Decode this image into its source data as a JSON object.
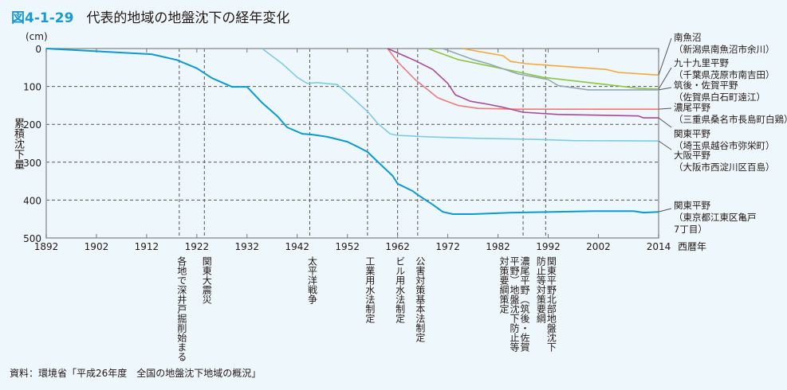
{
  "title": {
    "figure_number": "図4-1-29",
    "text": "代表的地域の地盤沈下の経年変化"
  },
  "source": "資料：環境省「平成26年度　全国の地盤沈下地域の概況」",
  "chart_data": {
    "type": "line",
    "title": "代表的地域の地盤沈下の経年変化",
    "xlabel": "西暦年",
    "ylabel": "累積沈下量",
    "yunit": "(cm)",
    "xlim": [
      1892,
      2014
    ],
    "ylim": [
      0,
      500
    ],
    "y_inverted": true,
    "xticks": [
      1892,
      1902,
      1912,
      1922,
      1932,
      1942,
      1952,
      1962,
      1972,
      1982,
      1992,
      2002,
      2014
    ],
    "yticks": [
      0,
      100,
      200,
      300,
      400,
      500
    ],
    "grid": "dashed horizontal at 100-400",
    "series": [
      {
        "name": "南魚沼",
        "location": "（新潟県南魚沼市余川）",
        "color": "#f7a833",
        "x": [
          1975,
          1977,
          1983,
          1984.5,
          1987.6,
          1994,
          2003.5,
          2006,
          2014
        ],
        "y": [
          0,
          5,
          19,
          34,
          40,
          46,
          55,
          63,
          70
        ]
      },
      {
        "name": "九十九里平野",
        "location": "（千葉県茂原市南吉田）",
        "color": "#8cc63f",
        "x": [
          1968,
          1974,
          1981,
          1991,
          1999,
          2010,
          2014
        ],
        "y": [
          0,
          29,
          48,
          76,
          88,
          105,
          107
        ]
      },
      {
        "name": "筑後・佐賀平野",
        "location": "（佐賀県白石町遠江）",
        "color": "#93a7b0",
        "x": [
          1971,
          1977,
          1980,
          1986,
          1992,
          1994,
          2000,
          2014
        ],
        "y": [
          0,
          29,
          40,
          67,
          82,
          98,
          109,
          109
        ]
      },
      {
        "name": "濃尾平野",
        "location": "（三重県桑名市長島町白鶏）",
        "color": "#f07a78",
        "x": [
          1960,
          1962,
          1965.5,
          1970,
          1974,
          1978,
          1986,
          2014
        ],
        "y": [
          0,
          35,
          82,
          130,
          150,
          158,
          160,
          160
        ]
      },
      {
        "name": "関東平野",
        "location": "（埼玉県越谷市弥栄町）",
        "color": "#a8489c",
        "x": [
          1960,
          1965.5,
          1969,
          1972,
          1973.5,
          1976.5,
          1980,
          1983,
          1987,
          1994,
          2010,
          2011,
          2014
        ],
        "y": [
          0,
          32,
          55,
          92,
          122,
          139,
          147,
          155,
          168,
          174,
          178,
          183,
          183
        ]
      },
      {
        "name": "大阪平野",
        "location": "（大阪市西淀川区百島）",
        "color": "#7ccbe8",
        "x": [
          1935,
          1939,
          1942,
          1944,
          1946,
          1950,
          1953,
          1956,
          1958,
          1960.5,
          1962,
          1968,
          1978,
          1990,
          1997,
          2014
        ],
        "y": [
          0,
          40,
          76,
          92,
          90,
          95,
          130,
          166,
          197,
          225,
          229,
          233,
          237,
          240,
          243,
          244
        ]
      },
      {
        "name": "関東平野",
        "location": "（東京都江東区亀戸7丁目）",
        "color": "#0b9ad3",
        "x": [
          1892,
          1913,
          1918,
          1922,
          1925,
          1929,
          1932,
          1935,
          1938,
          1940,
          1943,
          1945,
          1948,
          1952,
          1954,
          1956,
          1959,
          1961,
          1962,
          1965,
          1966,
          1969,
          1971,
          1973,
          1977,
          1985,
          1993,
          2001,
          2009,
          2011,
          2014
        ],
        "y": [
          0,
          15,
          30,
          52,
          78,
          101,
          101,
          143,
          178,
          208,
          225,
          227,
          233,
          246,
          259,
          273,
          311,
          336,
          357,
          376,
          386,
          412,
          431,
          437,
          437,
          433,
          431,
          429,
          429,
          433,
          431
        ]
      }
    ],
    "events": [
      {
        "year": 1918.5,
        "label": "各地で深井戸掘削始まる"
      },
      {
        "year": 1923.5,
        "label": "関東大震災"
      },
      {
        "year": 1944.5,
        "label": "太平洋戦争"
      },
      {
        "year": 1956,
        "label": "工業用水法制定"
      },
      {
        "year": 1962,
        "label": "ビル用水法制定"
      },
      {
        "year": 1966,
        "label": "公害対策基本法制定"
      },
      {
        "year": 1987,
        "label": "濃尾平野（筑後・佐賀平野）地盤沈下防止等対策要綱策定"
      },
      {
        "year": 1991.5,
        "label": "関東平野北部地盤沈下防止等対策要綱"
      }
    ]
  }
}
